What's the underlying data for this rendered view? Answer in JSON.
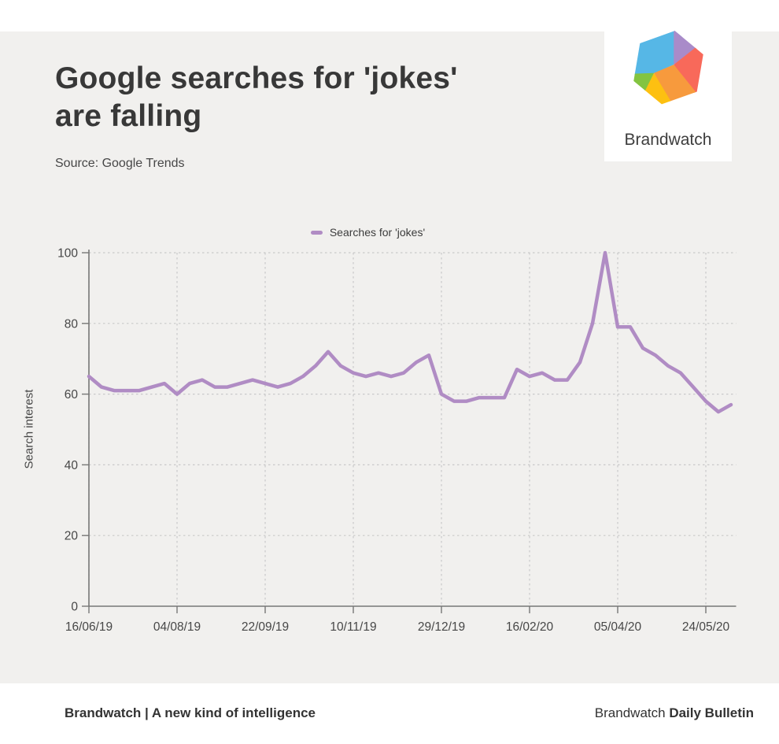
{
  "page": {
    "background": "#f1f0ee",
    "band_background": "#ffffff"
  },
  "header": {
    "title_line1": "Google searches for 'jokes'",
    "title_line2": "are falling",
    "source": "Source: Google Trends"
  },
  "logo": {
    "brand": "Brandwatch",
    "colors": {
      "blue": "#56b7e6",
      "purple": "#a98bc9",
      "red": "#f8695a",
      "orange": "#f79a3d",
      "yellow": "#fdc011",
      "green": "#83c441"
    }
  },
  "chart_data": {
    "type": "line",
    "title": "",
    "ylabel": "Search interest",
    "xlabel": "",
    "ylim": [
      0,
      100
    ],
    "yticks": [
      0,
      20,
      40,
      60,
      80,
      100
    ],
    "grid": "dashed",
    "legend_position": "top-center",
    "legend": [
      {
        "label": "Searches for 'jokes'",
        "color": "#b08cc4"
      }
    ],
    "x": [
      "16/06/19",
      "23/06/19",
      "30/06/19",
      "07/07/19",
      "14/07/19",
      "21/07/19",
      "28/07/19",
      "04/08/19",
      "11/08/19",
      "18/08/19",
      "25/08/19",
      "01/09/19",
      "08/09/19",
      "15/09/19",
      "22/09/19",
      "29/09/19",
      "06/10/19",
      "13/10/19",
      "20/10/19",
      "27/10/19",
      "03/11/19",
      "10/11/19",
      "17/11/19",
      "24/11/19",
      "01/12/19",
      "08/12/19",
      "15/12/19",
      "22/12/19",
      "29/12/19",
      "05/01/20",
      "12/01/20",
      "19/01/20",
      "26/01/20",
      "02/02/20",
      "09/02/20",
      "16/02/20",
      "23/02/20",
      "01/03/20",
      "08/03/20",
      "15/03/20",
      "22/03/20",
      "29/03/20",
      "05/04/20",
      "12/04/20",
      "19/04/20",
      "26/04/20",
      "03/05/20",
      "10/05/20",
      "17/05/20",
      "24/05/20",
      "31/05/20",
      "07/06/20"
    ],
    "xtick_labels": [
      "16/06/19",
      "04/08/19",
      "22/09/19",
      "10/11/19",
      "29/12/19",
      "16/02/20",
      "05/04/20",
      "24/05/20"
    ],
    "xtick_indices": [
      0,
      7,
      14,
      21,
      28,
      35,
      42,
      49
    ],
    "series": [
      {
        "name": "Searches for 'jokes'",
        "color": "#b08cc4",
        "values": [
          65,
          62,
          61,
          61,
          61,
          62,
          63,
          60,
          63,
          64,
          62,
          62,
          63,
          64,
          63,
          62,
          63,
          65,
          68,
          72,
          68,
          66,
          65,
          66,
          65,
          66,
          69,
          71,
          60,
          58,
          58,
          59,
          59,
          59,
          67,
          65,
          66,
          64,
          64,
          69,
          80,
          100,
          79,
          79,
          73,
          71,
          68,
          66,
          62,
          58,
          55,
          57
        ]
      }
    ],
    "axis_color": "#777777",
    "gridline_color": "#c9c9c9"
  },
  "footer": {
    "left_text": "Brandwatch | A new kind of intelligence",
    "right_normal": "Brandwatch",
    "right_bold": "Daily Bulletin"
  }
}
